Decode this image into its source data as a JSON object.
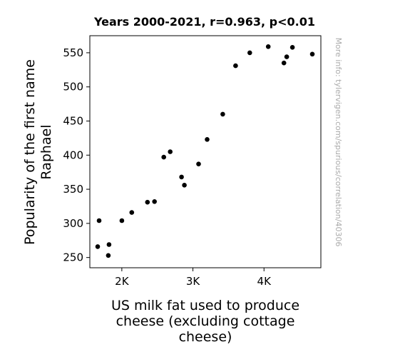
{
  "chart_data": {
    "type": "scatter",
    "title": "Years 2000-2021, r=0.963, p<0.01",
    "xlabel_lines": [
      "US milk fat used to produce",
      "cheese (excluding cottage",
      "cheese)"
    ],
    "ylabel_lines": [
      "Popularity of the first name",
      "Raphael"
    ],
    "xlim": [
      1550,
      4800
    ],
    "ylim": [
      235,
      575
    ],
    "x_ticks": [
      {
        "value": 2000,
        "label": "2K"
      },
      {
        "value": 3000,
        "label": "3K"
      },
      {
        "value": 4000,
        "label": "4K"
      }
    ],
    "y_ticks": [
      {
        "value": 250,
        "label": "250"
      },
      {
        "value": 300,
        "label": "300"
      },
      {
        "value": 350,
        "label": "350"
      },
      {
        "value": 400,
        "label": "400"
      },
      {
        "value": 450,
        "label": "450"
      },
      {
        "value": 500,
        "label": "500"
      },
      {
        "value": 550,
        "label": "550"
      }
    ],
    "points": [
      {
        "x": 1660,
        "y": 266
      },
      {
        "x": 1680,
        "y": 304
      },
      {
        "x": 1810,
        "y": 253
      },
      {
        "x": 1820,
        "y": 269
      },
      {
        "x": 2000,
        "y": 304
      },
      {
        "x": 2140,
        "y": 316
      },
      {
        "x": 2360,
        "y": 331
      },
      {
        "x": 2460,
        "y": 332
      },
      {
        "x": 2590,
        "y": 397
      },
      {
        "x": 2680,
        "y": 405
      },
      {
        "x": 2840,
        "y": 368
      },
      {
        "x": 2880,
        "y": 356
      },
      {
        "x": 3080,
        "y": 387
      },
      {
        "x": 3200,
        "y": 423
      },
      {
        "x": 3420,
        "y": 460
      },
      {
        "x": 3600,
        "y": 531
      },
      {
        "x": 3800,
        "y": 550
      },
      {
        "x": 4060,
        "y": 559
      },
      {
        "x": 4280,
        "y": 535
      },
      {
        "x": 4320,
        "y": 544
      },
      {
        "x": 4400,
        "y": 558
      },
      {
        "x": 4680,
        "y": 548
      }
    ],
    "point_color": "#000000",
    "grid": false,
    "watermark": "More info: tylervigen.com/spurious/correlation/40306"
  }
}
